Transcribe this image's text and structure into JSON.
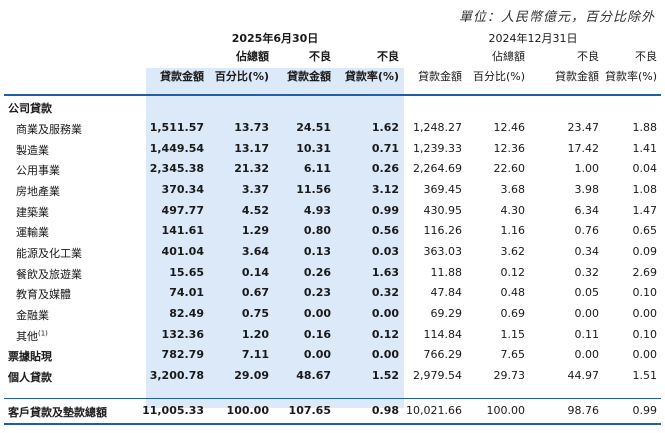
{
  "unit_note": "單位：人民幣億元，百分比除外",
  "period_2025": "2025年6月30日",
  "period_2024": "2024年12月31日",
  "headers_2025": [
    {
      "line1": "",
      "line2": "貸款金額"
    },
    {
      "line1": "佔總額",
      "line2": "百分比(%)"
    },
    {
      "line1": "不良",
      "line2": "貸款金額"
    },
    {
      "line1": "不良",
      "line2": "貸款率(%)"
    }
  ],
  "headers_2024": [
    {
      "line1": "",
      "line2": "貸款金額"
    },
    {
      "line1": "佔總額",
      "line2": "百分比(%)"
    },
    {
      "line1": "不良",
      "line2": "貸款金額"
    },
    {
      "line1": "不良",
      "line2": "貸款率(%)"
    }
  ],
  "rows": [
    {
      "label": "公司貸款",
      "type": "section",
      "values": [
        "",
        "",
        "",
        "",
        "",
        "",
        "",
        ""
      ]
    },
    {
      "label": "商業及服務業",
      "type": "sub",
      "values": [
        "1,511.57",
        "13.73",
        "24.51",
        "1.62",
        "1,248.27",
        "12.46",
        "23.47",
        "1.88"
      ]
    },
    {
      "label": "製造業",
      "type": "sub",
      "values": [
        "1,449.54",
        "13.17",
        "10.31",
        "0.71",
        "1,239.33",
        "12.36",
        "17.42",
        "1.41"
      ]
    },
    {
      "label": "公用事業",
      "type": "sub",
      "values": [
        "2,345.38",
        "21.32",
        "6.11",
        "0.26",
        "2,264.69",
        "22.60",
        "1.00",
        "0.04"
      ]
    },
    {
      "label": "房地產業",
      "type": "sub",
      "values": [
        "370.34",
        "3.37",
        "11.56",
        "3.12",
        "369.45",
        "3.68",
        "3.98",
        "1.08"
      ]
    },
    {
      "label": "建築業",
      "type": "sub",
      "values": [
        "497.77",
        "4.52",
        "4.93",
        "0.99",
        "430.95",
        "4.30",
        "6.34",
        "1.47"
      ]
    },
    {
      "label": "運輸業",
      "type": "sub",
      "values": [
        "141.61",
        "1.29",
        "0.80",
        "0.56",
        "116.26",
        "1.16",
        "0.76",
        "0.65"
      ]
    },
    {
      "label": "能源及化工業",
      "type": "sub",
      "values": [
        "401.04",
        "3.64",
        "0.13",
        "0.03",
        "363.03",
        "3.62",
        "0.34",
        "0.09"
      ]
    },
    {
      "label": "餐飲及旅遊業",
      "type": "sub",
      "values": [
        "15.65",
        "0.14",
        "0.26",
        "1.63",
        "11.88",
        "0.12",
        "0.32",
        "2.69"
      ]
    },
    {
      "label": "教育及媒體",
      "type": "sub",
      "values": [
        "74.01",
        "0.67",
        "0.23",
        "0.32",
        "47.84",
        "0.48",
        "0.05",
        "0.10"
      ]
    },
    {
      "label": "金融業",
      "type": "sub",
      "values": [
        "82.49",
        "0.75",
        "0.00",
        "0.00",
        "69.29",
        "0.69",
        "0.00",
        "0.00"
      ]
    },
    {
      "label": "其他",
      "note": "(1)",
      "type": "sub",
      "values": [
        "132.36",
        "1.20",
        "0.16",
        "0.12",
        "114.84",
        "1.15",
        "0.11",
        "0.10"
      ]
    },
    {
      "label": "票據貼現",
      "type": "section",
      "values": [
        "782.79",
        "7.11",
        "0.00",
        "0.00",
        "766.29",
        "7.65",
        "0.00",
        "0.00"
      ]
    },
    {
      "label": "個人貸款",
      "type": "section",
      "values": [
        "3,200.78",
        "29.09",
        "48.67",
        "1.52",
        "2,979.54",
        "29.73",
        "44.97",
        "1.51"
      ]
    },
    {
      "label": "客戶貸款及墊款總額",
      "type": "section",
      "values": [
        "11,005.33",
        "100.00",
        "107.65",
        "0.98",
        "10,021.66",
        "100.00",
        "98.76",
        "0.99"
      ]
    }
  ]
}
